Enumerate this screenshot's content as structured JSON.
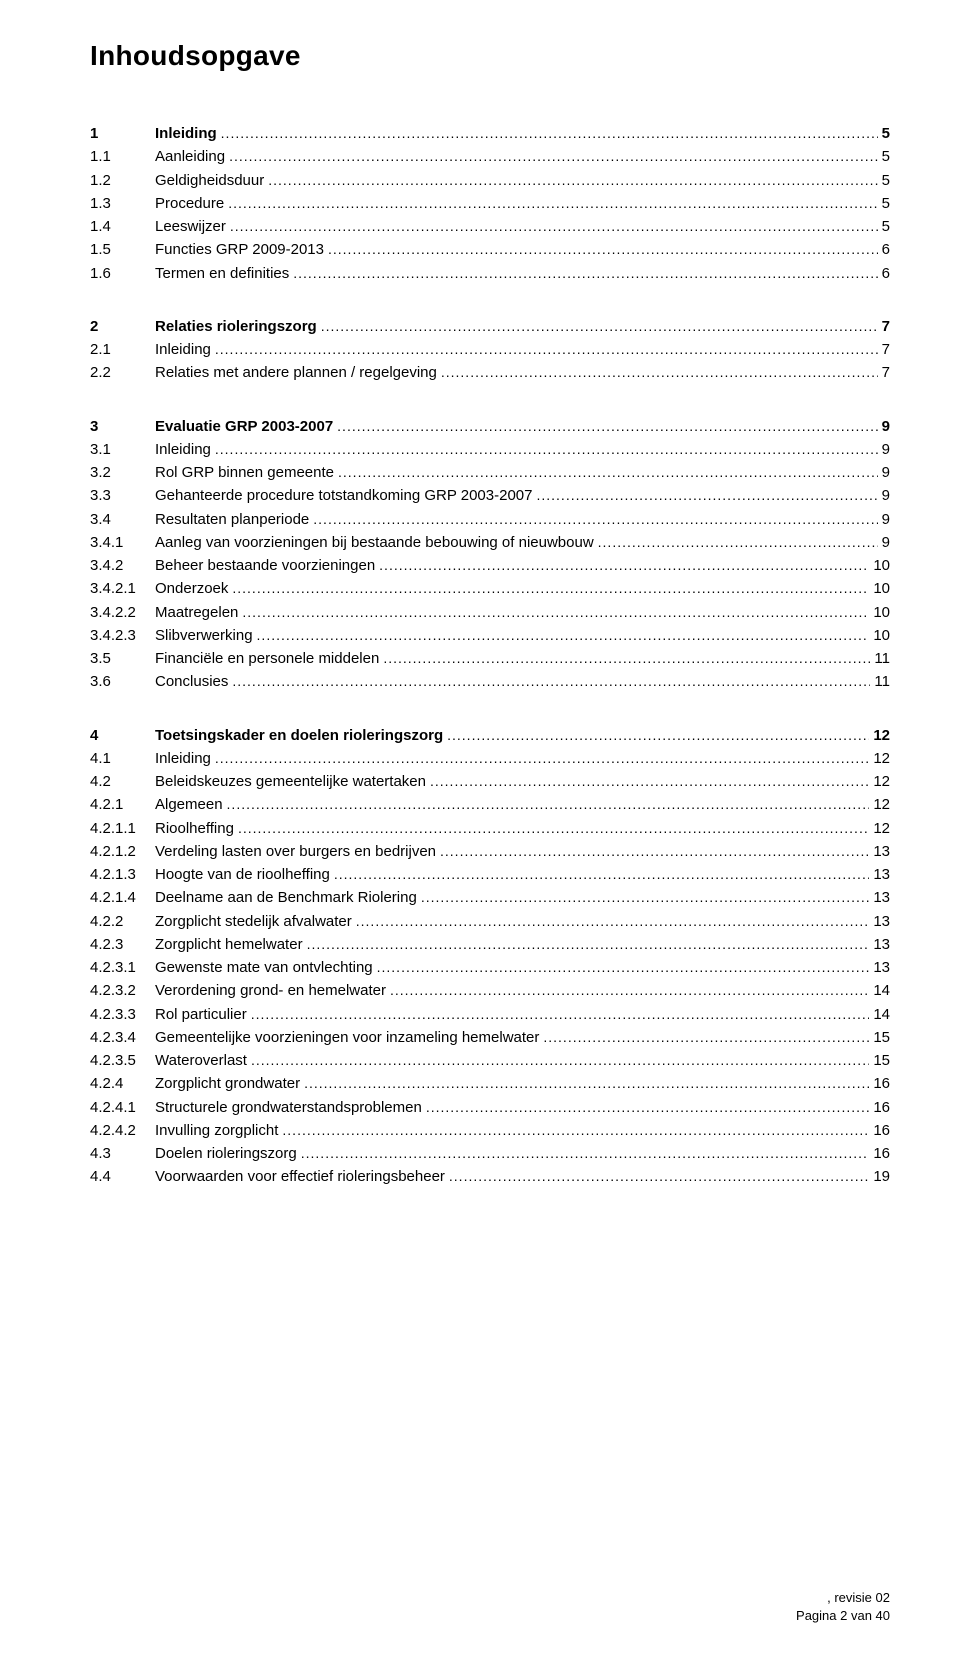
{
  "title": "Inhoudsopgave",
  "footer": {
    "line1": ", revisie 02",
    "line2": "Pagina 2 van 40"
  },
  "blocks": [
    [
      {
        "num": "1",
        "text": "Inleiding",
        "page": "5",
        "bold": true
      },
      {
        "num": "1.1",
        "text": "Aanleiding",
        "page": "5",
        "bold": false
      },
      {
        "num": "1.2",
        "text": "Geldigheidsduur",
        "page": "5",
        "bold": false
      },
      {
        "num": "1.3",
        "text": "Procedure",
        "page": "5",
        "bold": false
      },
      {
        "num": "1.4",
        "text": "Leeswijzer",
        "page": "5",
        "bold": false
      },
      {
        "num": "1.5",
        "text": "Functies GRP 2009-2013",
        "page": "6",
        "bold": false
      },
      {
        "num": "1.6",
        "text": "Termen en definities",
        "page": "6",
        "bold": false
      }
    ],
    [
      {
        "num": "2",
        "text": "Relaties rioleringszorg",
        "page": "7",
        "bold": true
      },
      {
        "num": "2.1",
        "text": "Inleiding",
        "page": "7",
        "bold": false
      },
      {
        "num": "2.2",
        "text": "Relaties met andere plannen / regelgeving",
        "page": "7",
        "bold": false
      }
    ],
    [
      {
        "num": "3",
        "text": "Evaluatie GRP 2003-2007",
        "page": "9",
        "bold": true
      },
      {
        "num": "3.1",
        "text": "Inleiding",
        "page": "9",
        "bold": false
      },
      {
        "num": "3.2",
        "text": "Rol GRP binnen gemeente",
        "page": "9",
        "bold": false
      },
      {
        "num": "3.3",
        "text": "Gehanteerde procedure totstandkoming GRP 2003-2007",
        "page": "9",
        "bold": false
      },
      {
        "num": "3.4",
        "text": "Resultaten planperiode",
        "page": "9",
        "bold": false
      },
      {
        "num": "3.4.1",
        "text": "Aanleg van voorzieningen bij bestaande bebouwing of nieuwbouw",
        "page": "9",
        "bold": false
      },
      {
        "num": "3.4.2",
        "text": "Beheer bestaande voorzieningen",
        "page": "10",
        "bold": false
      },
      {
        "num": "3.4.2.1",
        "text": "Onderzoek",
        "page": "10",
        "bold": false
      },
      {
        "num": "3.4.2.2",
        "text": "Maatregelen",
        "page": "10",
        "bold": false
      },
      {
        "num": "3.4.2.3",
        "text": "Slibverwerking",
        "page": "10",
        "bold": false
      },
      {
        "num": "3.5",
        "text": "Financiële en personele middelen",
        "page": "11",
        "bold": false
      },
      {
        "num": "3.6",
        "text": "Conclusies",
        "page": "11",
        "bold": false
      }
    ],
    [
      {
        "num": "4",
        "text": "Toetsingskader en doelen rioleringszorg",
        "page": "12",
        "bold": true
      },
      {
        "num": "4.1",
        "text": "Inleiding",
        "page": "12",
        "bold": false
      },
      {
        "num": "4.2",
        "text": "Beleidskeuzes gemeentelijke watertaken",
        "page": "12",
        "bold": false
      },
      {
        "num": "4.2.1",
        "text": "Algemeen",
        "page": "12",
        "bold": false
      },
      {
        "num": "4.2.1.1",
        "text": "Rioolheffing",
        "page": "12",
        "bold": false
      },
      {
        "num": "4.2.1.2",
        "text": "Verdeling lasten over burgers en bedrijven",
        "page": "13",
        "bold": false
      },
      {
        "num": "4.2.1.3",
        "text": "Hoogte van de rioolheffing",
        "page": "13",
        "bold": false
      },
      {
        "num": "4.2.1.4",
        "text": "Deelname aan de Benchmark Riolering",
        "page": "13",
        "bold": false
      },
      {
        "num": "4.2.2",
        "text": "Zorgplicht stedelijk afvalwater",
        "page": "13",
        "bold": false
      },
      {
        "num": "4.2.3",
        "text": "Zorgplicht hemelwater",
        "page": "13",
        "bold": false
      },
      {
        "num": "4.2.3.1",
        "text": "Gewenste mate van ontvlechting",
        "page": "13",
        "bold": false
      },
      {
        "num": "4.2.3.2",
        "text": "Verordening grond- en hemelwater",
        "page": "14",
        "bold": false
      },
      {
        "num": "4.2.3.3",
        "text": "Rol particulier",
        "page": "14",
        "bold": false
      },
      {
        "num": "4.2.3.4",
        "text": "Gemeentelijke voorzieningen voor inzameling hemelwater",
        "page": "15",
        "bold": false
      },
      {
        "num": "4.2.3.5",
        "text": "Wateroverlast",
        "page": "15",
        "bold": false
      },
      {
        "num": "4.2.4",
        "text": "Zorgplicht grondwater",
        "page": "16",
        "bold": false
      },
      {
        "num": "4.2.4.1",
        "text": "Structurele grondwaterstandsproblemen",
        "page": "16",
        "bold": false
      },
      {
        "num": "4.2.4.2",
        "text": "Invulling zorgplicht",
        "page": "16",
        "bold": false
      },
      {
        "num": "4.3",
        "text": "Doelen rioleringszorg",
        "page": "16",
        "bold": false
      },
      {
        "num": "4.4",
        "text": "Voorwaarden voor effectief rioleringsbeheer",
        "page": "19",
        "bold": false
      }
    ]
  ]
}
